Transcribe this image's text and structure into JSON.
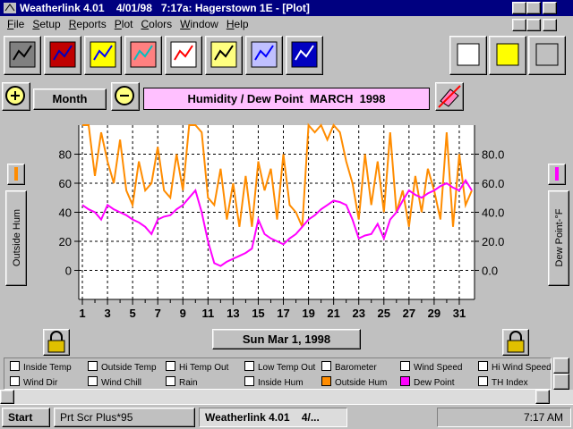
{
  "window": {
    "title": "Weatherlink 4.01    4/01/98   7:17a: Hagerstown 1E - [Plot]",
    "menu": [
      "File",
      "Setup",
      "Reports",
      "Plot",
      "Colors",
      "Window",
      "Help"
    ]
  },
  "controls": {
    "range": "Month",
    "date": "Sun Mar 1, 1998"
  },
  "chart_data": {
    "type": "line",
    "title": "Humidity / Dew Point  MARCH  1998",
    "ylabel": "Outside Hum",
    "y2label": "Dew Point-°F",
    "x": [
      1,
      1.5,
      2,
      2.5,
      3,
      3.5,
      4,
      4.5,
      5,
      5.5,
      6,
      6.5,
      7,
      7.5,
      8,
      8.5,
      9,
      9.5,
      10,
      10.5,
      11,
      11.5,
      12,
      12.5,
      13,
      13.5,
      14,
      14.5,
      15,
      15.5,
      16,
      16.5,
      17,
      17.5,
      18,
      18.5,
      19,
      19.5,
      20,
      20.5,
      21,
      21.5,
      22,
      22.5,
      23,
      23.5,
      24,
      24.5,
      25,
      25.5,
      26,
      26.5,
      27,
      27.5,
      28,
      28.5,
      29,
      29.5,
      30,
      30.5,
      31,
      31.5,
      32
    ],
    "series": [
      {
        "name": "Outside Hum",
        "color": "#ff8c00",
        "values": [
          100,
          100,
          65,
          95,
          75,
          60,
          90,
          55,
          45,
          75,
          55,
          60,
          85,
          55,
          50,
          80,
          55,
          100,
          100,
          95,
          50,
          45,
          70,
          35,
          60,
          30,
          65,
          30,
          75,
          55,
          70,
          35,
          80,
          45,
          40,
          30,
          100,
          95,
          100,
          90,
          100,
          95,
          75,
          60,
          35,
          80,
          45,
          75,
          40,
          95,
          40,
          55,
          30,
          65,
          40,
          70,
          55,
          35,
          95,
          30,
          80,
          45,
          55
        ]
      },
      {
        "name": "Dew Point",
        "color": "#ff00ff",
        "axis": "y2",
        "values": [
          45,
          42,
          40,
          35,
          45,
          42,
          40,
          38,
          35,
          33,
          30,
          25,
          35,
          37,
          38,
          42,
          45,
          50,
          55,
          40,
          20,
          5,
          3,
          6,
          8,
          10,
          12,
          15,
          35,
          25,
          22,
          20,
          18,
          22,
          25,
          30,
          35,
          38,
          42,
          45,
          48,
          47,
          45,
          35,
          22,
          24,
          25,
          32,
          22,
          35,
          40,
          48,
          55,
          52,
          50,
          53,
          55,
          58,
          60,
          57,
          55,
          62,
          55
        ]
      }
    ],
    "xlim": [
      1,
      32
    ],
    "xticks": [
      1,
      3,
      5,
      7,
      9,
      11,
      13,
      15,
      17,
      19,
      21,
      23,
      25,
      27,
      29,
      31
    ],
    "xminorticks": [
      2,
      4,
      6,
      8,
      10,
      12,
      14,
      16,
      18,
      20,
      22,
      24,
      26,
      28,
      30
    ],
    "ylim": [
      -20,
      100
    ],
    "yticks": [
      0,
      20,
      40,
      60,
      80
    ],
    "y2lim": [
      -20,
      100
    ],
    "y2ticks": [
      {
        "value": 0,
        "label": "0.0"
      },
      {
        "value": 20,
        "label": "20.0"
      },
      {
        "value": 40,
        "label": "40.0"
      },
      {
        "value": 60,
        "label": "60.0"
      },
      {
        "value": 80,
        "label": "80.0"
      }
    ],
    "grid": true
  },
  "parameters": [
    "Inside Temp",
    "Outside Temp",
    "Hi Temp Out",
    "Low Temp Out",
    "Barometer",
    "Wind Speed",
    "Hi Wind Speed",
    "Wind Dir",
    "Wind Chill",
    "Rain",
    "Inside Hum",
    "TH Index"
  ],
  "taskbar": {
    "start": "Start",
    "tasks": [
      "Prt Scr Plus*95",
      "Weatherlink 4.01    4/..."
    ],
    "clock": "7:17 AM"
  }
}
